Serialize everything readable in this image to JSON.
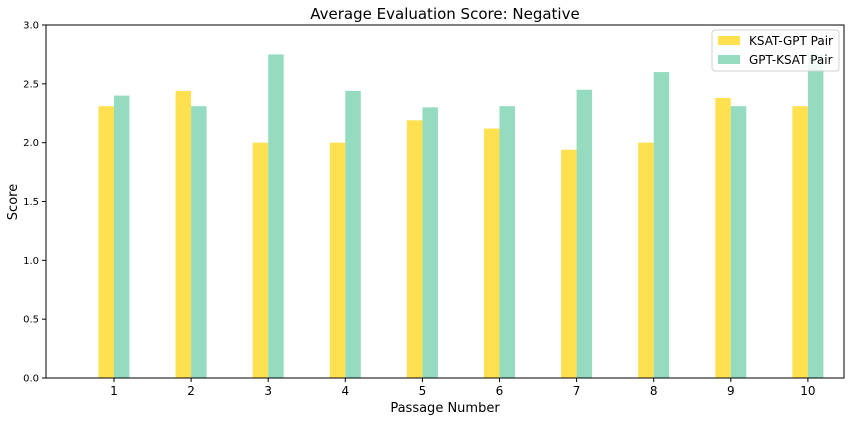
{
  "chart_data": {
    "type": "bar",
    "title": "Average Evaluation Score: Negative",
    "xlabel": "Passage Number",
    "ylabel": "Score",
    "categories": [
      "1",
      "2",
      "3",
      "4",
      "5",
      "6",
      "7",
      "8",
      "9",
      "10"
    ],
    "ylim": [
      0,
      3.0
    ],
    "yticks": [
      "0.0",
      "0.5",
      "1.0",
      "1.5",
      "2.0",
      "2.5",
      "3.0"
    ],
    "grid": false,
    "legend_position": "top-right",
    "series": [
      {
        "name": "KSAT-GPT Pair",
        "color": "#FFE04F",
        "values": [
          2.31,
          2.44,
          2.0,
          2.0,
          2.19,
          2.12,
          1.94,
          2.0,
          2.38,
          2.31
        ]
      },
      {
        "name": "GPT-KSAT Pair",
        "color": "#95DBBF",
        "values": [
          2.4,
          2.31,
          2.75,
          2.44,
          2.3,
          2.31,
          2.45,
          2.6,
          2.31,
          2.75
        ]
      }
    ]
  }
}
